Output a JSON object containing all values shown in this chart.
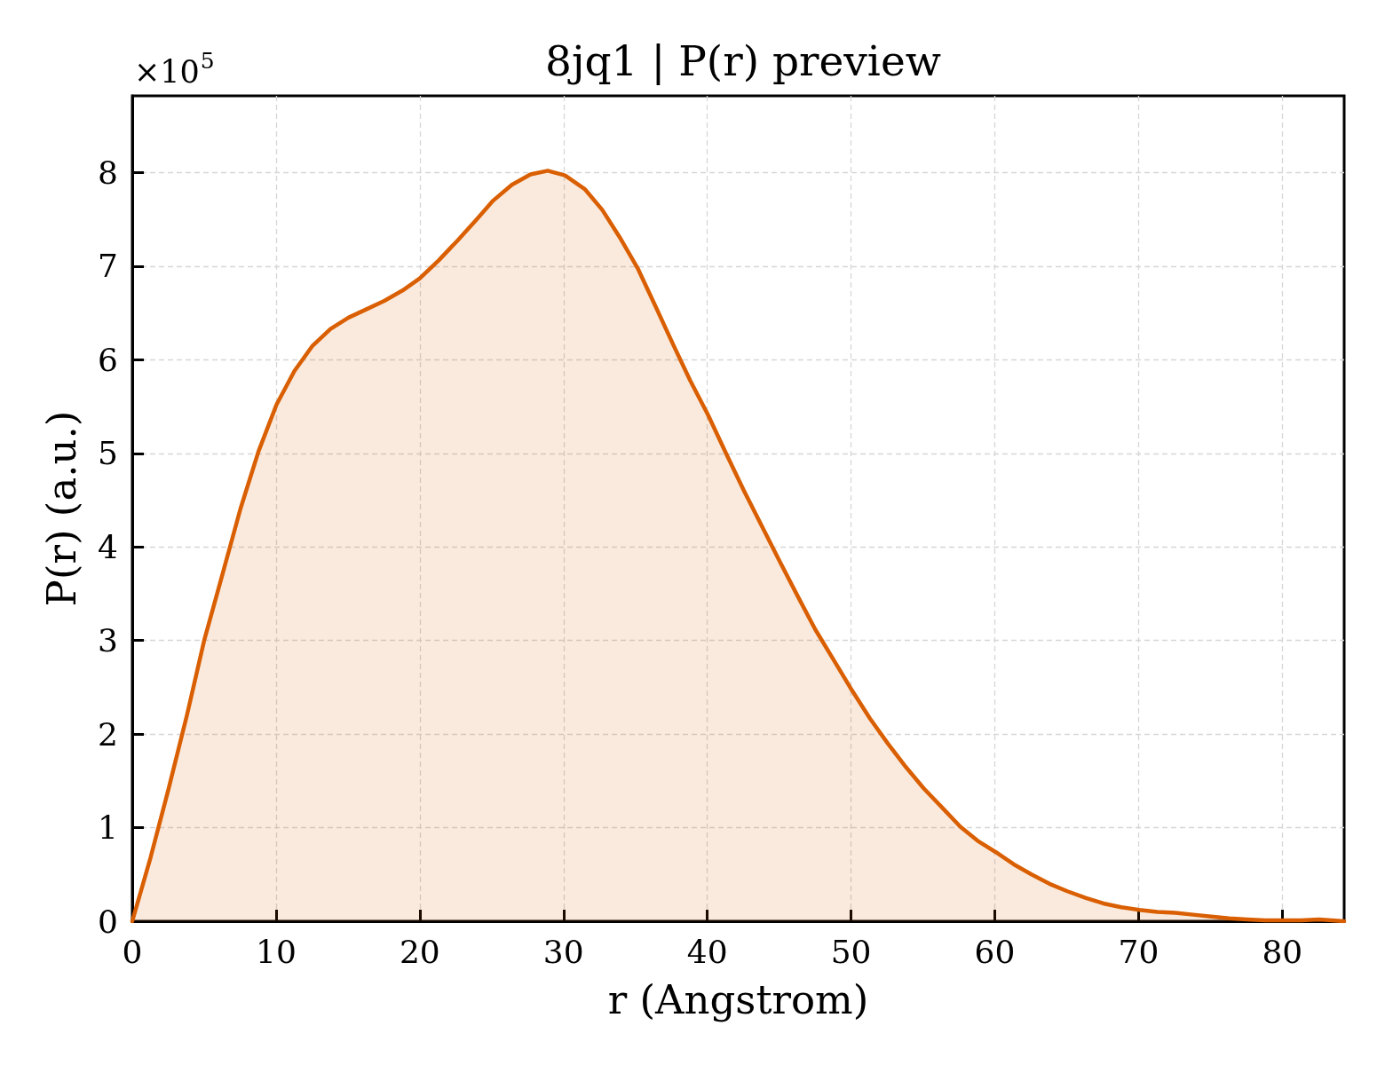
{
  "chart_data": {
    "type": "area",
    "title": "8jq1 | P(r) preview",
    "xlabel": "r (Angstrom)",
    "ylabel": "P(r) (a.u.)",
    "annotations": [
      "×10$^{5}$"
    ],
    "x": [
      0,
      1.27,
      2.5,
      3.8,
      5.0,
      6.26,
      7.53,
      8.78,
      10.03,
      11.28,
      12.54,
      13.79,
      15.04,
      16.3,
      17.53,
      18.8,
      20.0,
      21.3,
      22.6,
      23.9,
      25.1,
      26.4,
      27.7,
      28.9,
      30.1,
      31.5,
      32.7,
      33.9,
      35.15,
      36.4,
      37.6,
      38.8,
      40.05,
      41.3,
      42.55,
      43.8,
      45.05,
      46.3,
      47.5,
      48.8,
      50.05,
      51.3,
      52.55,
      53.8,
      55.05,
      56.3,
      57.6,
      58.8,
      60.05,
      61.3,
      62.55,
      63.8,
      65.05,
      66.3,
      67.55,
      68.8,
      70.05,
      71.3,
      72.55,
      73.8,
      75.05,
      76.3,
      77.55,
      78.8,
      80.05,
      81.3,
      82.55,
      84.3
    ],
    "values": [
      0,
      0.68,
      1.4,
      2.2,
      3.0,
      3.7,
      4.41,
      5.02,
      5.52,
      5.88,
      6.15,
      6.33,
      6.45,
      6.54,
      6.63,
      6.74,
      6.87,
      7.06,
      7.27,
      7.49,
      7.7,
      7.87,
      7.98,
      8.02,
      7.97,
      7.82,
      7.6,
      7.31,
      6.98,
      6.57,
      6.17,
      5.78,
      5.41,
      5.0,
      4.6,
      4.22,
      3.84,
      3.47,
      3.12,
      2.79,
      2.47,
      2.17,
      1.9,
      1.65,
      1.42,
      1.22,
      1.01,
      0.86,
      0.74,
      0.61,
      0.5,
      0.4,
      0.32,
      0.25,
      0.19,
      0.15,
      0.12,
      0.1,
      0.09,
      0.07,
      0.05,
      0.03,
      0.02,
      0.01,
      0.01,
      0.01,
      0.02,
      0
    ],
    "color": "#d95f02",
    "line_style": "solid",
    "xlim": [
      0,
      84.3
    ],
    "xticks": [
      0,
      10,
      20,
      30,
      40,
      50,
      60,
      70,
      80
    ],
    "ylim": [
      0,
      8.82
    ],
    "yticks": [
      0,
      1,
      2,
      3,
      4,
      5,
      6,
      7,
      8
    ],
    "grid": true
  }
}
